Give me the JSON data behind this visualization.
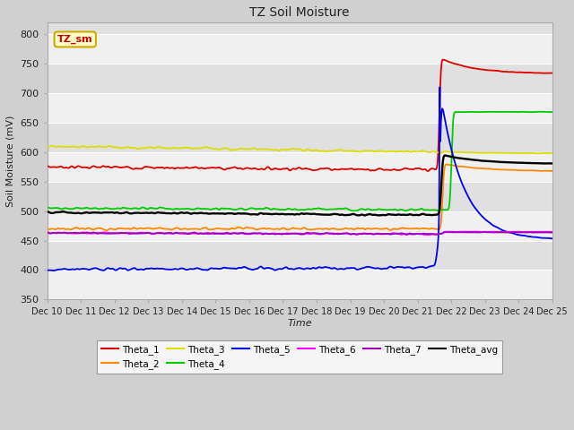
{
  "title": "TZ Soil Moisture",
  "xlabel": "Time",
  "ylabel": "Soil Moisture (mV)",
  "ylim": [
    350,
    820
  ],
  "yticks": [
    350,
    400,
    450,
    500,
    550,
    600,
    650,
    700,
    750,
    800
  ],
  "start_day": 10,
  "end_day": 25,
  "bg_outer": "#d0d0d0",
  "bg_plot_light": "#f0f0f0",
  "bg_plot_dark": "#e0e0e0",
  "legend_label": "TZ_sm",
  "legend_box_fill": "#ffffcc",
  "legend_box_edge": "#ccaa00",
  "legend_text_color": "#cc0000",
  "spike_t": 21.7,
  "series_order": [
    "Theta_1",
    "Theta_2",
    "Theta_3",
    "Theta_4",
    "Theta_5",
    "Theta_6",
    "Theta_7",
    "Theta_avg"
  ],
  "series": {
    "Theta_1": {
      "color": "#dd0000",
      "pre": 575,
      "noise": 3.0,
      "spike_t": 21.65,
      "peak": 760,
      "post": 733,
      "decay": 3.5,
      "pre_trend": -5
    },
    "Theta_2": {
      "color": "#ff8800",
      "pre": 470,
      "noise": 2.5,
      "spike_t": 21.75,
      "peak": 580,
      "post": 567,
      "decay": 2.5,
      "pre_trend": 0
    },
    "Theta_3": {
      "color": "#dddd00",
      "pre": 610,
      "noise": 2.0,
      "spike_t": 21.75,
      "peak": 601,
      "post": 598,
      "decay": 4.0,
      "pre_trend": -10
    },
    "Theta_4": {
      "color": "#00cc00",
      "pre": 505,
      "noise": 2.0,
      "spike_t": 22.0,
      "peak": 668,
      "post": 668,
      "decay": 0.8,
      "pre_trend": -3
    },
    "Theta_5": {
      "color": "#0000ee",
      "pre": 401,
      "noise": 3.0,
      "spike_t": 21.65,
      "peak": 710,
      "post": 452,
      "decay": 5.0,
      "pre_trend": 3
    },
    "Theta_6": {
      "color": "#ff00ff",
      "pre": 463,
      "noise": 1.5,
      "spike_t": 21.75,
      "peak": 465,
      "post": 464,
      "decay": 0.3,
      "pre_trend": -2
    },
    "Theta_7": {
      "color": "#9900bb",
      "pre": 463,
      "noise": 1.5,
      "spike_t": 21.75,
      "peak": 464,
      "post": 463,
      "decay": 0.3,
      "pre_trend": -2
    },
    "Theta_avg": {
      "color": "#000000",
      "pre": 498,
      "noise": 1.5,
      "spike_t": 21.7,
      "peak": 596,
      "post": 580,
      "decay": 3.0,
      "pre_trend": -5
    }
  },
  "legend_rows": [
    [
      "Theta_1",
      "Theta_2",
      "Theta_3",
      "Theta_4",
      "Theta_5",
      "Theta_6"
    ],
    [
      "Theta_7",
      "Theta_avg"
    ]
  ]
}
